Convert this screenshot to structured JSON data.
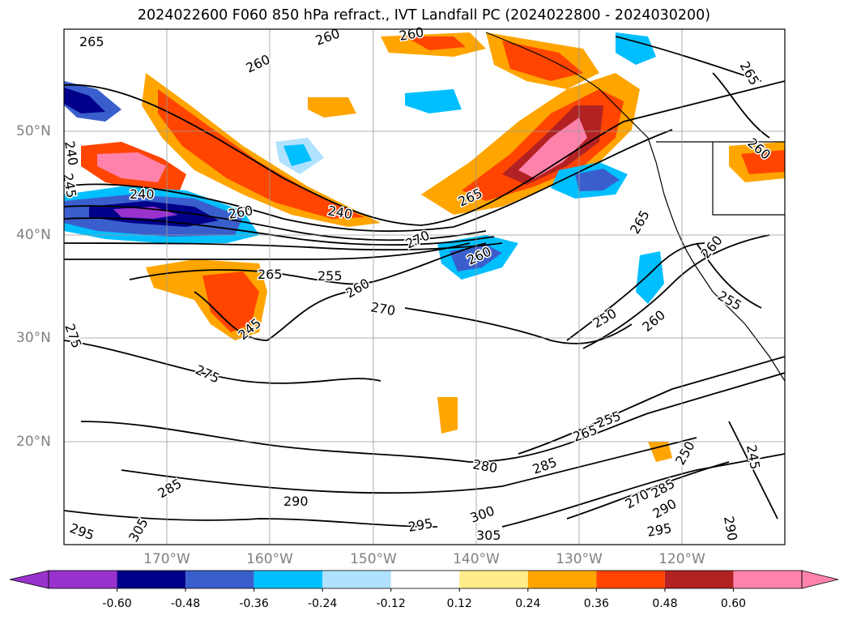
{
  "title": "2024022600 F060 850 hPa refract., IVT Landfall PC (2024022800 - 2024030200)",
  "lat_labels": [
    "50°N",
    "40°N",
    "30°N",
    "20°N"
  ],
  "lon_labels": [
    "170°W",
    "160°W",
    "150°W",
    "140°W",
    "130°W",
    "120°W"
  ],
  "contour_labels": [
    "265",
    "260",
    "260",
    "260",
    "265",
    "260",
    "240",
    "245",
    "240",
    "260",
    "240",
    "265",
    "265",
    "270",
    "260",
    "265",
    "255",
    "260",
    "270",
    "245",
    "250",
    "260",
    "260",
    "255",
    "275",
    "275",
    "265",
    "255",
    "280",
    "285",
    "290",
    "285",
    "295",
    "305",
    "295",
    "300",
    "305",
    "270",
    "285",
    "290",
    "295",
    "250",
    "245",
    "290"
  ],
  "colorbar": {
    "ticks": [
      "-0.60",
      "-0.48",
      "-0.36",
      "-0.24",
      "-0.12",
      "0.12",
      "0.24",
      "0.36",
      "0.48",
      "0.60"
    ],
    "colors": [
      "#9932cc",
      "#00008b",
      "#3a5fcd",
      "#00bfff",
      "#b0e2ff",
      "#ffffff",
      "#ffec8b",
      "#ffa500",
      "#ff4500",
      "#b22222",
      "#ff82ab",
      "#ff82ab"
    ]
  }
}
